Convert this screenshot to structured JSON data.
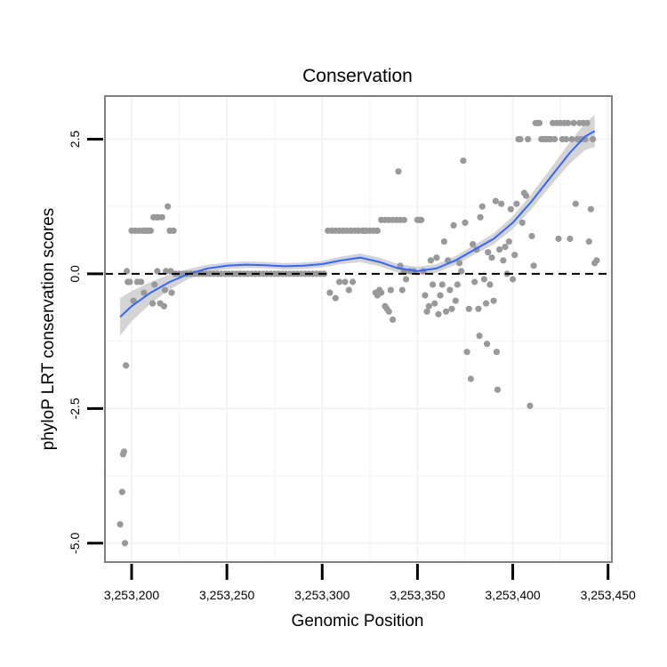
{
  "chart_data": {
    "type": "scatter",
    "title": "Conservation",
    "xlabel": "Genomic Position",
    "ylabel": "phyloP LRT conservation scores",
    "xlim": [
      3253186,
      3253452
    ],
    "ylim": [
      -5.35,
      3.3
    ],
    "x_ticks": [
      3253200,
      3253250,
      3253300,
      3253350,
      3253400,
      3253450
    ],
    "x_tick_labels": [
      "3,253,200",
      "3,253,250",
      "3,253,300",
      "3,253,350",
      "3,253,400",
      "3,253,450"
    ],
    "y_ticks": [
      -5.0,
      -2.5,
      0.0,
      2.5
    ],
    "y_tick_labels": [
      "-5.0",
      "-2.5",
      "0.0",
      "2.5"
    ],
    "reference_line": {
      "y": 0,
      "style": "dashed"
    },
    "grid": true,
    "colors": {
      "points": "#999999",
      "smooth_line": "#3366ff",
      "confidence_band": "#cccccc",
      "panel_border": "#808080",
      "grid": "#f3f3f3"
    },
    "points": [
      [
        3253194,
        -4.65
      ],
      [
        3253195,
        -4.05
      ],
      [
        3253195.5,
        -3.35
      ],
      [
        3253196,
        -3.3
      ],
      [
        3253196.5,
        -5.0
      ],
      [
        3253197,
        -1.7
      ],
      [
        3253197.5,
        0.05
      ],
      [
        3253198,
        -0.15
      ],
      [
        3253199,
        -0.15
      ],
      [
        3253200,
        0.8
      ],
      [
        3253201,
        -0.5
      ],
      [
        3253202,
        0.8
      ],
      [
        3253203,
        -0.15
      ],
      [
        3253204,
        0.8
      ],
      [
        3253205,
        -0.15
      ],
      [
        3253206,
        0.8
      ],
      [
        3253206.5,
        -0.35
      ],
      [
        3253207,
        0.8
      ],
      [
        3253208,
        0.8
      ],
      [
        3253209,
        0.8
      ],
      [
        3253210,
        0.8
      ],
      [
        3253211,
        -0.55
      ],
      [
        3253211.5,
        1.05
      ],
      [
        3253212,
        -0.2
      ],
      [
        3253213,
        1.05
      ],
      [
        3253213.5,
        0.05
      ],
      [
        3253214,
        1.05
      ],
      [
        3253215,
        -0.55
      ],
      [
        3253216,
        1.05
      ],
      [
        3253217,
        -0.6
      ],
      [
        3253217.5,
        -0.3
      ],
      [
        3253218,
        0.05
      ],
      [
        3253219,
        1.25
      ],
      [
        3253220,
        0.8
      ],
      [
        3253220.5,
        0.05
      ],
      [
        3253221,
        -0.35
      ],
      [
        3253222,
        0.8
      ],
      [
        3253223,
        0
      ],
      [
        3253225,
        0
      ],
      [
        3253227,
        0
      ],
      [
        3253229,
        0
      ],
      [
        3253231,
        0
      ],
      [
        3253233,
        0
      ],
      [
        3253235,
        0
      ],
      [
        3253237,
        0
      ],
      [
        3253239,
        0
      ],
      [
        3253241,
        0
      ],
      [
        3253243,
        0
      ],
      [
        3253245,
        0
      ],
      [
        3253247,
        0
      ],
      [
        3253249,
        0
      ],
      [
        3253251,
        0
      ],
      [
        3253253,
        0
      ],
      [
        3253255,
        0
      ],
      [
        3253257,
        0
      ],
      [
        3253259,
        0
      ],
      [
        3253261,
        0
      ],
      [
        3253263,
        0
      ],
      [
        3253265,
        0
      ],
      [
        3253267,
        0
      ],
      [
        3253269,
        0
      ],
      [
        3253271,
        0
      ],
      [
        3253273,
        0
      ],
      [
        3253275,
        0
      ],
      [
        3253277,
        0
      ],
      [
        3253279,
        0
      ],
      [
        3253281,
        0
      ],
      [
        3253283,
        0
      ],
      [
        3253285,
        0
      ],
      [
        3253287,
        0
      ],
      [
        3253289,
        0
      ],
      [
        3253291,
        0
      ],
      [
        3253293,
        0
      ],
      [
        3253295,
        0
      ],
      [
        3253297,
        0
      ],
      [
        3253299,
        0
      ],
      [
        3253301,
        0
      ],
      [
        3253303,
        0.8
      ],
      [
        3253305,
        0.8
      ],
      [
        3253307,
        0.8
      ],
      [
        3253309,
        0.8
      ],
      [
        3253311,
        0.8
      ],
      [
        3253313,
        0.8
      ],
      [
        3253315,
        0.8
      ],
      [
        3253317,
        0.8
      ],
      [
        3253319,
        0.8
      ],
      [
        3253321,
        0.8
      ],
      [
        3253323,
        0.8
      ],
      [
        3253325,
        0.8
      ],
      [
        3253327,
        0.8
      ],
      [
        3253329,
        0.8
      ],
      [
        3253331,
        1.0
      ],
      [
        3253333,
        1.0
      ],
      [
        3253335,
        1.0
      ],
      [
        3253337,
        1.0
      ],
      [
        3253339,
        1.0
      ],
      [
        3253341,
        1.0
      ],
      [
        3253343,
        1.0
      ],
      [
        3253304,
        -0.35
      ],
      [
        3253307,
        -0.45
      ],
      [
        3253309,
        -0.15
      ],
      [
        3253312,
        -0.15
      ],
      [
        3253314,
        -0.3
      ],
      [
        3253316,
        -0.15
      ],
      [
        3253322,
        0.8
      ],
      [
        3253328,
        -0.35
      ],
      [
        3253329,
        -0.4
      ],
      [
        3253330,
        -0.3
      ],
      [
        3253331,
        -0.35
      ],
      [
        3253333,
        -0.6
      ],
      [
        3253334,
        -0.65
      ],
      [
        3253335,
        -0.7
      ],
      [
        3253336,
        -0.3
      ],
      [
        3253337,
        -0.85
      ],
      [
        3253340,
        1.9
      ],
      [
        3253341,
        0.15
      ],
      [
        3253342,
        -0.3
      ],
      [
        3253343,
        0.05
      ],
      [
        3253344,
        -0.1
      ],
      [
        3253346,
        0.05
      ],
      [
        3253348,
        0.05
      ],
      [
        3253350,
        1.0
      ],
      [
        3253351,
        1.0
      ],
      [
        3253352,
        1.0
      ],
      [
        3253353,
        0.05
      ],
      [
        3253354,
        -0.4
      ],
      [
        3253355,
        -0.7
      ],
      [
        3253356,
        -0.6
      ],
      [
        3253357,
        0.25
      ],
      [
        3253358,
        -0.2
      ],
      [
        3253359,
        -0.55
      ],
      [
        3253360,
        0.3
      ],
      [
        3253361,
        -0.75
      ],
      [
        3253362,
        -0.4
      ],
      [
        3253363,
        -0.2
      ],
      [
        3253364,
        0.6
      ],
      [
        3253365,
        -0.7
      ],
      [
        3253366,
        0.25
      ],
      [
        3253367,
        -0.3
      ],
      [
        3253368,
        -0.65
      ],
      [
        3253369,
        0.9
      ],
      [
        3253370,
        -0.5
      ],
      [
        3253371,
        -0.2
      ],
      [
        3253372,
        0.2
      ],
      [
        3253373,
        0.05
      ],
      [
        3253374,
        2.1
      ],
      [
        3253375,
        0.95
      ],
      [
        3253376,
        -1.45
      ],
      [
        3253377,
        -0.65
      ],
      [
        3253378,
        -1.95
      ],
      [
        3253379,
        0.55
      ],
      [
        3253380,
        -0.15
      ],
      [
        3253381,
        0.45
      ],
      [
        3253382,
        -0.65
      ],
      [
        3253382.5,
        -1.15
      ],
      [
        3253383,
        1.05
      ],
      [
        3253384,
        1.25
      ],
      [
        3253385,
        -0.1
      ],
      [
        3253386,
        -0.55
      ],
      [
        3253386.5,
        -1.3
      ],
      [
        3253387,
        0.4
      ],
      [
        3253388,
        -0.2
      ],
      [
        3253389,
        0.3
      ],
      [
        3253390,
        -0.5
      ],
      [
        3253391,
        1.35
      ],
      [
        3253391.5,
        -1.45
      ],
      [
        3253392,
        -2.15
      ],
      [
        3253393,
        0.45
      ],
      [
        3253394,
        1.3
      ],
      [
        3253395,
        0.25
      ],
      [
        3253396,
        0.5
      ],
      [
        3253397,
        0.0
      ],
      [
        3253398,
        0.6
      ],
      [
        3253399,
        1.2
      ],
      [
        3253400,
        -0.1
      ],
      [
        3253401,
        0.35
      ],
      [
        3253402,
        1.3
      ],
      [
        3253403,
        2.5
      ],
      [
        3253404,
        2.5
      ],
      [
        3253405,
        0.95
      ],
      [
        3253406,
        1.5
      ],
      [
        3253407,
        1.45
      ],
      [
        3253408,
        2.5
      ],
      [
        3253409,
        -2.45
      ],
      [
        3253410,
        0.7
      ],
      [
        3253411,
        0.15
      ],
      [
        3253412,
        2.8
      ],
      [
        3253413,
        2.8
      ],
      [
        3253414,
        2.8
      ],
      [
        3253415,
        2.5
      ],
      [
        3253416,
        2.5
      ],
      [
        3253417,
        2.5
      ],
      [
        3253418,
        2.5
      ],
      [
        3253419,
        2.5
      ],
      [
        3253420,
        2.5
      ],
      [
        3253421,
        2.8
      ],
      [
        3253422,
        2.5
      ],
      [
        3253423,
        2.8
      ],
      [
        3253424,
        0.65
      ],
      [
        3253425,
        2.8
      ],
      [
        3253426,
        2.5
      ],
      [
        3253427,
        2.8
      ],
      [
        3253428,
        2.5
      ],
      [
        3253429,
        2.8
      ],
      [
        3253430,
        0.65
      ],
      [
        3253431,
        2.5
      ],
      [
        3253432,
        2.8
      ],
      [
        3253433,
        1.3
      ],
      [
        3253434,
        2.5
      ],
      [
        3253435,
        2.8
      ],
      [
        3253436,
        2.5
      ],
      [
        3253437,
        2.8
      ],
      [
        3253438,
        2.5
      ],
      [
        3253439,
        2.8
      ],
      [
        3253440,
        0.6
      ],
      [
        3253441,
        1.2
      ],
      [
        3253442,
        2.5
      ],
      [
        3253443,
        0.2
      ],
      [
        3253444,
        0.25
      ]
    ],
    "smooth_fit": {
      "method": "loess",
      "line": [
        [
          3253194,
          -0.8
        ],
        [
          3253200,
          -0.6
        ],
        [
          3253210,
          -0.35
        ],
        [
          3253220,
          -0.15
        ],
        [
          3253230,
          0.0
        ],
        [
          3253240,
          0.1
        ],
        [
          3253250,
          0.15
        ],
        [
          3253260,
          0.17
        ],
        [
          3253270,
          0.16
        ],
        [
          3253280,
          0.14
        ],
        [
          3253290,
          0.15
        ],
        [
          3253300,
          0.18
        ],
        [
          3253310,
          0.25
        ],
        [
          3253320,
          0.3
        ],
        [
          3253330,
          0.22
        ],
        [
          3253340,
          0.1
        ],
        [
          3253350,
          0.05
        ],
        [
          3253360,
          0.1
        ],
        [
          3253370,
          0.25
        ],
        [
          3253380,
          0.45
        ],
        [
          3253390,
          0.65
        ],
        [
          3253400,
          0.95
        ],
        [
          3253410,
          1.35
        ],
        [
          3253420,
          1.8
        ],
        [
          3253430,
          2.25
        ],
        [
          3253438,
          2.55
        ],
        [
          3253443,
          2.65
        ]
      ],
      "band_halfwidth": [
        0.35,
        0.28,
        0.2,
        0.14,
        0.09,
        0.07,
        0.06,
        0.06,
        0.06,
        0.06,
        0.06,
        0.06,
        0.07,
        0.08,
        0.08,
        0.08,
        0.08,
        0.08,
        0.08,
        0.09,
        0.1,
        0.12,
        0.14,
        0.16,
        0.2,
        0.25,
        0.3
      ]
    }
  }
}
